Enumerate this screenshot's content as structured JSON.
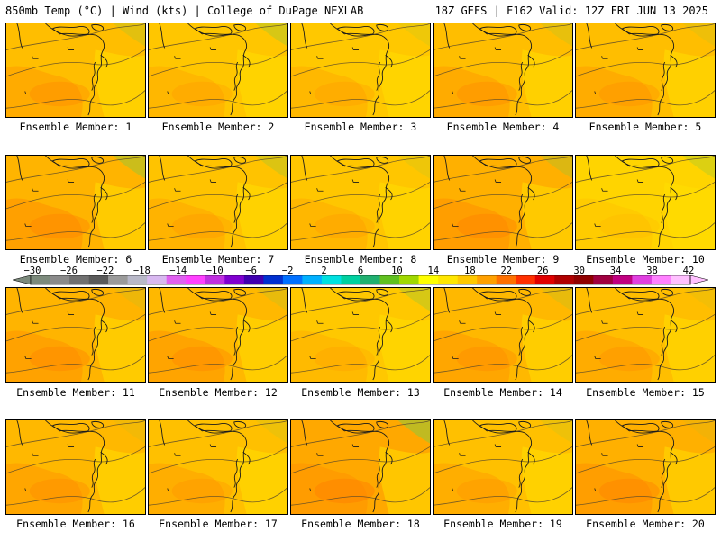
{
  "header": {
    "left": "850mb Temp (°C) | Wind (kts) | College of DuPage NEXLAB",
    "right": "18Z GEFS | F162 Valid: 12Z FRI JUN 13 2025"
  },
  "members": [
    {
      "label": "Ensemble Member: 1",
      "fill": "#ffbe00",
      "warm": 0.55,
      "green": 0.25
    },
    {
      "label": "Ensemble Member: 2",
      "fill": "#ffc600",
      "warm": 0.35,
      "green": 0.35
    },
    {
      "label": "Ensemble Member: 3",
      "fill": "#ffc800",
      "warm": 0.35,
      "green": 0.15
    },
    {
      "label": "Ensemble Member: 4",
      "fill": "#ffbe00",
      "warm": 0.55,
      "green": 0.2
    },
    {
      "label": "Ensemble Member: 5",
      "fill": "#ffbe00",
      "warm": 0.5,
      "green": 0.15
    },
    {
      "label": "Ensemble Member: 6",
      "fill": "#ffb400",
      "warm": 0.75,
      "green": 0.45
    },
    {
      "label": "Ensemble Member: 7",
      "fill": "#ffc300",
      "warm": 0.4,
      "green": 0.3
    },
    {
      "label": "Ensemble Member: 8",
      "fill": "#ffc600",
      "warm": 0.35,
      "green": 0.15
    },
    {
      "label": "Ensemble Member: 9",
      "fill": "#ffb000",
      "warm": 0.8,
      "green": 0.3
    },
    {
      "label": "Ensemble Member: 10",
      "fill": "#ffd400",
      "warm": 0.15,
      "green": 0.3
    },
    {
      "label": "Ensemble Member: 11",
      "fill": "#ffb400",
      "warm": 0.7,
      "green": 0.15
    },
    {
      "label": "Ensemble Member: 12",
      "fill": "#ffb800",
      "warm": 0.65,
      "green": 0.2
    },
    {
      "label": "Ensemble Member: 13",
      "fill": "#ffc800",
      "warm": 0.3,
      "green": 0.35
    },
    {
      "label": "Ensemble Member: 14",
      "fill": "#ffb800",
      "warm": 0.6,
      "green": 0.2
    },
    {
      "label": "Ensemble Member: 15",
      "fill": "#ffbe00",
      "warm": 0.5,
      "green": 0.1
    },
    {
      "label": "Ensemble Member: 16",
      "fill": "#ffb800",
      "warm": 0.6,
      "green": 0.1
    },
    {
      "label": "Ensemble Member: 17",
      "fill": "#ffc000",
      "warm": 0.45,
      "green": 0.15
    },
    {
      "label": "Ensemble Member: 18",
      "fill": "#ffa800",
      "warm": 0.9,
      "green": 0.55
    },
    {
      "label": "Ensemble Member: 19",
      "fill": "#ffc000",
      "warm": 0.45,
      "green": 0.15
    },
    {
      "label": "Ensemble Member: 20",
      "fill": "#ffb000",
      "warm": 0.8,
      "green": 0.1
    }
  ],
  "colorbar": {
    "labels": [
      "−30",
      "−26",
      "−22",
      "−18",
      "−14",
      "−10",
      "−6",
      "−2",
      "2",
      "6",
      "10",
      "14",
      "18",
      "22",
      "26",
      "30",
      "34",
      "38",
      "42"
    ],
    "colors": [
      "#7c8a7c",
      "#8a8a8a",
      "#707070",
      "#5a5a5a",
      "#9a9a9a",
      "#b8b8c8",
      "#d8b8f0",
      "#e060f0",
      "#ff40ff",
      "#c030e0",
      "#8000d0",
      "#4000b0",
      "#0030d0",
      "#0070ff",
      "#00b0ff",
      "#00e0e0",
      "#00d0a0",
      "#20b070",
      "#60c020",
      "#a0d800",
      "#ffff00",
      "#ffe600",
      "#ffc800",
      "#ffa000",
      "#ff7000",
      "#ff3000",
      "#e00000",
      "#b00000",
      "#900000",
      "#a00040",
      "#c00080",
      "#e040e0",
      "#ff80ff",
      "#ffc0ff"
    ]
  }
}
